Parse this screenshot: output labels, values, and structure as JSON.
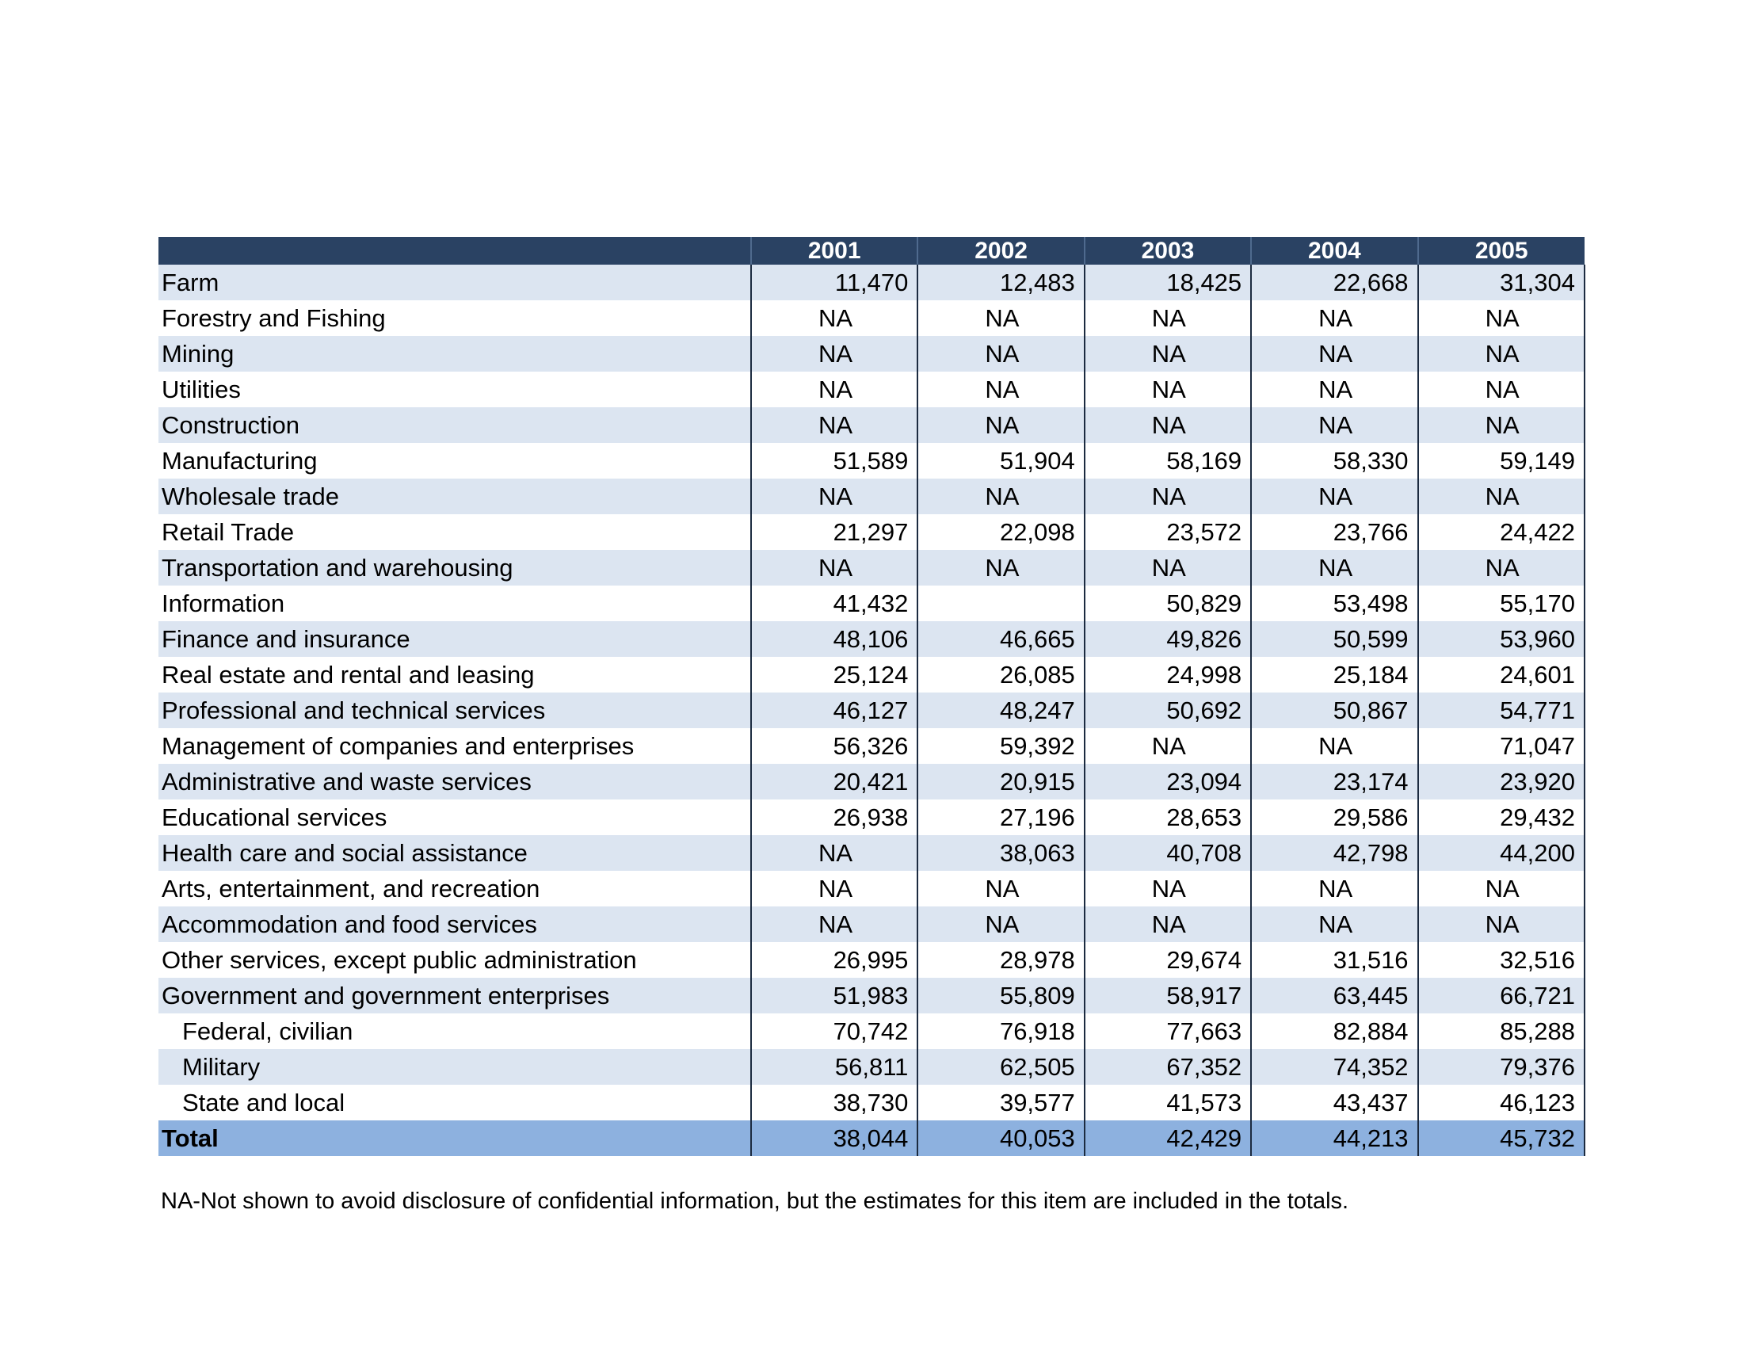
{
  "table": {
    "corner_label": "",
    "years": [
      "2001",
      "2002",
      "2003",
      "2004",
      "2005"
    ],
    "rows": [
      {
        "label": "Farm",
        "values": [
          "11,470",
          "12,483",
          "18,425",
          "22,668",
          "31,304"
        ]
      },
      {
        "label": "Forestry and Fishing",
        "values": [
          "NA",
          "NA",
          "NA",
          "NA",
          "NA"
        ]
      },
      {
        "label": "Mining",
        "values": [
          "NA",
          "NA",
          "NA",
          "NA",
          "NA"
        ]
      },
      {
        "label": "Utilities",
        "values": [
          "NA",
          "NA",
          "NA",
          "NA",
          "NA"
        ]
      },
      {
        "label": "Construction",
        "values": [
          "NA",
          "NA",
          "NA",
          "NA",
          "NA"
        ]
      },
      {
        "label": "Manufacturing",
        "values": [
          "51,589",
          "51,904",
          "58,169",
          "58,330",
          "59,149"
        ]
      },
      {
        "label": "Wholesale trade",
        "values": [
          "NA",
          "NA",
          "NA",
          "NA",
          "NA"
        ]
      },
      {
        "label": "Retail Trade",
        "values": [
          "21,297",
          "22,098",
          "23,572",
          "23,766",
          "24,422"
        ]
      },
      {
        "label": "Transportation and warehousing",
        "values": [
          "NA",
          "NA",
          "NA",
          "NA",
          "NA"
        ]
      },
      {
        "label": "Information",
        "values": [
          "41,432",
          "",
          "50,829",
          "53,498",
          "55,170"
        ]
      },
      {
        "label": "Finance and insurance",
        "values": [
          "48,106",
          "46,665",
          "49,826",
          "50,599",
          "53,960"
        ]
      },
      {
        "label": "Real estate and rental and leasing",
        "values": [
          "25,124",
          "26,085",
          "24,998",
          "25,184",
          "24,601"
        ]
      },
      {
        "label": "Professional and technical services",
        "values": [
          "46,127",
          "48,247",
          "50,692",
          "50,867",
          "54,771"
        ]
      },
      {
        "label": "Management of companies and enterprises",
        "values": [
          "56,326",
          "59,392",
          "NA",
          "NA",
          "71,047"
        ]
      },
      {
        "label": "Administrative and waste services",
        "values": [
          "20,421",
          "20,915",
          "23,094",
          "23,174",
          "23,920"
        ]
      },
      {
        "label": "Educational services",
        "values": [
          "26,938",
          "27,196",
          "28,653",
          "29,586",
          "29,432"
        ]
      },
      {
        "label": "Health care and social assistance",
        "values": [
          "NA",
          "38,063",
          "40,708",
          "42,798",
          "44,200"
        ]
      },
      {
        "label": "Arts, entertainment, and recreation",
        "values": [
          "NA",
          "NA",
          "NA",
          "NA",
          "NA"
        ]
      },
      {
        "label": "Accommodation and food services",
        "values": [
          "NA",
          "NA",
          "NA",
          "NA",
          "NA"
        ]
      },
      {
        "label": "Other services, except public administration",
        "values": [
          "26,995",
          "28,978",
          "29,674",
          "31,516",
          "32,516"
        ]
      },
      {
        "label": "Government and government enterprises",
        "values": [
          "51,983",
          "55,809",
          "58,917",
          "63,445",
          "66,721"
        ]
      },
      {
        "label": "Federal, civilian",
        "indent": true,
        "values": [
          "70,742",
          "76,918",
          "77,663",
          "82,884",
          "85,288"
        ]
      },
      {
        "label": "Military",
        "indent": true,
        "values": [
          "56,811",
          "62,505",
          "67,352",
          "74,352",
          "79,376"
        ]
      },
      {
        "label": "State and local",
        "indent": true,
        "values": [
          "38,730",
          "39,577",
          "41,573",
          "43,437",
          "46,123"
        ]
      }
    ],
    "total": {
      "label": "Total",
      "values": [
        "38,044",
        "40,053",
        "42,429",
        "44,213",
        "45,732"
      ]
    }
  },
  "footnote": "NA-Not shown to avoid disclosure of confidential information, but the estimates for this item are included in the totals."
}
